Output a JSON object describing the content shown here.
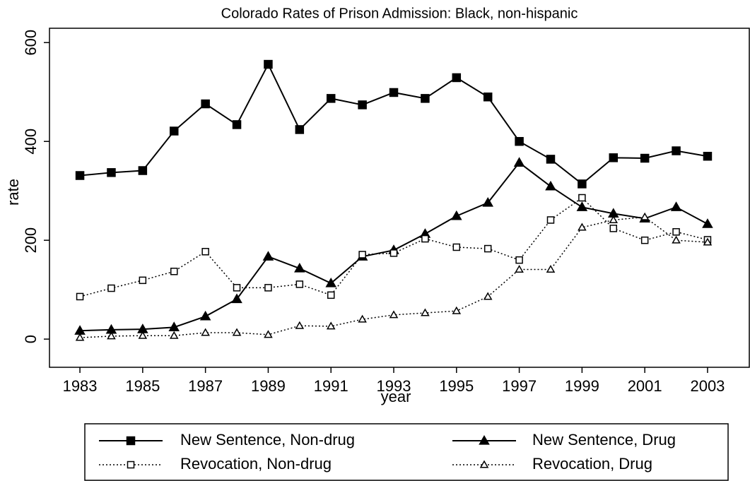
{
  "chart_data": {
    "type": "line",
    "title": "Colorado Rates of Prison Admission: Black, non-hispanic",
    "x_label": "year",
    "y_label": "rate",
    "x": [
      1983,
      1984,
      1985,
      1986,
      1987,
      1988,
      1989,
      1990,
      1991,
      1992,
      1993,
      1994,
      1995,
      1996,
      1997,
      1998,
      1999,
      2000,
      2001,
      2002,
      2003
    ],
    "series": [
      {
        "name": "New Sentence, Non-drug",
        "color": "#000000",
        "line_style": "solid",
        "marker": "square",
        "marker_fill": true,
        "values": [
          331,
          337,
          341,
          421,
          476,
          434,
          556,
          424,
          487,
          474,
          499,
          487,
          529,
          490,
          400,
          364,
          314,
          367,
          366,
          381,
          370
        ]
      },
      {
        "name": "New Sentence, Drug",
        "color": "#000000",
        "line_style": "solid",
        "marker": "triangle",
        "marker_fill": true,
        "values": [
          17,
          19,
          20,
          24,
          46,
          81,
          167,
          143,
          113,
          167,
          180,
          213,
          249,
          276,
          357,
          309,
          267,
          254,
          244,
          267,
          233
        ]
      },
      {
        "name": "Revocation, Non-drug",
        "color": "#000000",
        "line_style": "dotted",
        "marker": "square",
        "marker_fill": false,
        "values": [
          86,
          103,
          119,
          137,
          177,
          104,
          104,
          111,
          89,
          171,
          174,
          203,
          186,
          183,
          160,
          241,
          286,
          224,
          200,
          217,
          201
        ]
      },
      {
        "name": "Revocation, Drug",
        "color": "#000000",
        "line_style": "dotted",
        "marker": "triangle",
        "marker_fill": false,
        "values": [
          3,
          6,
          7,
          7,
          13,
          13,
          9,
          27,
          26,
          40,
          49,
          53,
          57,
          86,
          141,
          141,
          226,
          241,
          247,
          200,
          196
        ]
      }
    ],
    "xlim": [
      1982.03,
      2004.33
    ],
    "xticks": [
      1983,
      1985,
      1987,
      1989,
      1991,
      1993,
      1995,
      1997,
      1999,
      2001,
      2003
    ],
    "ylim": [
      -57,
      629
    ],
    "yticks": [
      0,
      200,
      400,
      600
    ],
    "grid": false,
    "legend": "bottom"
  }
}
